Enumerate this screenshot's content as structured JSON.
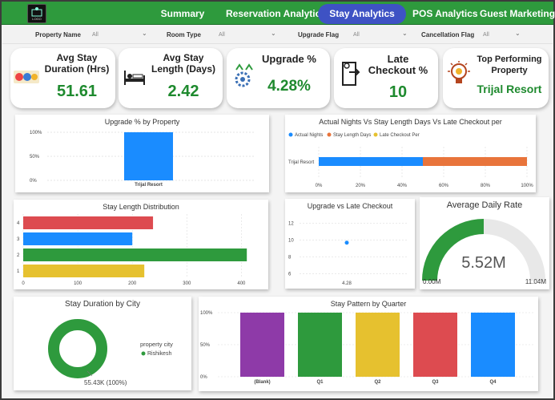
{
  "nav": {
    "tabs": [
      "Summary",
      "Reservation Analytics",
      "Stay Analytics",
      "POS Analytics",
      "Guest Marketing"
    ],
    "active_tab": "Stay Analytics",
    "logo_text": "LOGO"
  },
  "filters": [
    {
      "label": "Property Name",
      "value": "All"
    },
    {
      "label": "Room Type",
      "value": "All"
    },
    {
      "label": "Upgrade Flag",
      "value": "All"
    },
    {
      "label": "Cancellation Flag",
      "value": "All"
    }
  ],
  "kpis": {
    "avg_stay_duration": {
      "title": "Avg Stay Duration (Hrs)",
      "value": "51.61"
    },
    "avg_stay_length": {
      "title": "Avg Stay Length (Days)",
      "value": "2.42"
    },
    "upgrade_pct": {
      "title": "Upgrade %",
      "value": "4.28%"
    },
    "late_checkout_pct": {
      "title": "Late Checkout %",
      "value": "10"
    },
    "top_property": {
      "title": "Top Performing Property",
      "value": "Trijal Resort"
    }
  },
  "colors": {
    "green": "#2e9a3d",
    "blue": "#1a8cff",
    "orange": "#e8743b",
    "red": "#dd4b50",
    "yellow": "#e6c12f",
    "purple": "#8e3aa8",
    "kpi_value": "#1e8a2e",
    "active_tab": "#3e52c4"
  },
  "chart_data": [
    {
      "id": "upgrade_by_property",
      "type": "bar",
      "title": "Upgrade % by Property",
      "categories": [
        "Trijal Resort"
      ],
      "values": [
        100
      ],
      "y_ticks": [
        "100%",
        "50%",
        "0%"
      ],
      "ylim": [
        0,
        100
      ]
    },
    {
      "id": "nights_vs_length",
      "type": "bar",
      "orientation": "horizontal-stacked-100",
      "title": "Actual Nights Vs Stay Length Days Vs Late Checkout per",
      "categories": [
        "Trijal Resort"
      ],
      "legend": [
        "Actual Nights",
        "Stay Length Days",
        "Late Checkout Per"
      ],
      "series": [
        {
          "name": "Actual Nights",
          "values": [
            50
          ]
        },
        {
          "name": "Stay Length Days",
          "values": [
            50
          ]
        },
        {
          "name": "Late Checkout Per",
          "values": [
            0
          ]
        }
      ],
      "x_ticks": [
        "0%",
        "20%",
        "40%",
        "60%",
        "80%",
        "100%"
      ],
      "xlim": [
        0,
        100
      ]
    },
    {
      "id": "stay_length_distribution",
      "type": "bar",
      "orientation": "horizontal",
      "title": "Stay Length Distribution",
      "categories": [
        "4",
        "3",
        "2",
        "1"
      ],
      "values": [
        238,
        200,
        410,
        222
      ],
      "bar_colors": [
        "#dd4b50",
        "#1a8cff",
        "#2e9a3d",
        "#e6c12f"
      ],
      "x_ticks": [
        "0",
        "100",
        "200",
        "300",
        "400"
      ],
      "xlim": [
        0,
        420
      ]
    },
    {
      "id": "upgrade_vs_late_checkout",
      "type": "scatter",
      "title": "Upgrade vs Late Checkout",
      "points": [
        {
          "x": 4.28,
          "y": 9.7
        }
      ],
      "x_ticks": [
        "4.28"
      ],
      "y_ticks": [
        "12",
        "10",
        "8",
        "6"
      ],
      "ylim": [
        5.5,
        13
      ]
    },
    {
      "id": "average_daily_rate",
      "type": "gauge",
      "title": "Average Daily Rate",
      "value": 5.52,
      "value_label": "5.52M",
      "min_label": "0.00M",
      "max_label": "11.04M",
      "min": 0,
      "max": 11.04
    },
    {
      "id": "stay_duration_by_city",
      "type": "pie",
      "title": "Stay Duration by City",
      "legend_title": "property city",
      "slices": [
        {
          "label": "Rishikesh",
          "value": 100
        }
      ],
      "data_label": "55.43K (100%)"
    },
    {
      "id": "stay_pattern_by_quarter",
      "type": "bar",
      "title": "Stay Pattern by Quarter",
      "categories": [
        "(Blank)",
        "Q1",
        "Q2",
        "Q3",
        "Q4"
      ],
      "values": [
        100,
        100,
        100,
        100,
        100
      ],
      "bar_colors": [
        "#8e3aa8",
        "#2e9a3d",
        "#e6c12f",
        "#dd4b50",
        "#1a8cff"
      ],
      "y_ticks": [
        "100%",
        "50%",
        "0%"
      ],
      "ylim": [
        0,
        100
      ]
    }
  ]
}
